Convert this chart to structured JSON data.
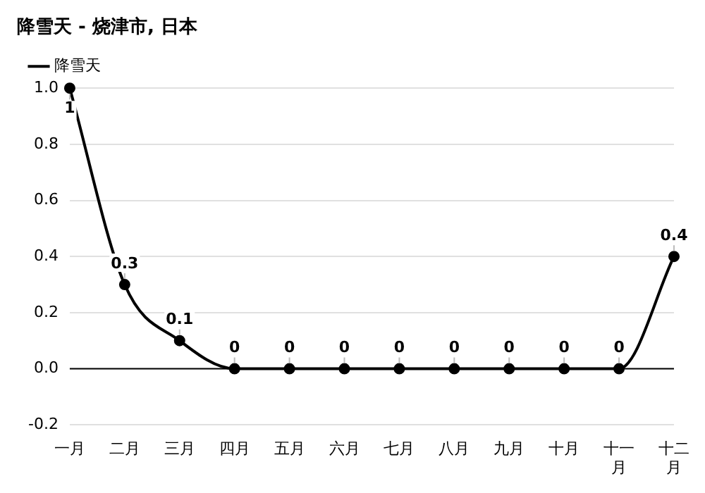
{
  "chart_data": {
    "type": "line",
    "title": "降雪天 - 烧津市, 日本",
    "categories": [
      "一月",
      "二月",
      "三月",
      "四月",
      "五月",
      "六月",
      "七月",
      "八月",
      "九月",
      "十月",
      "十一月",
      "十二月"
    ],
    "series": [
      {
        "name": "降雪天",
        "color": "#000000",
        "values": [
          1,
          0.3,
          0.1,
          0,
          0,
          0,
          0,
          0,
          0,
          0,
          0,
          0.4
        ]
      }
    ],
    "ylim": [
      -0.2,
      1.0
    ],
    "yticks": [
      -0.2,
      {
        "value": 0,
        "label": "0.0"
      },
      0.2,
      0.4,
      0.6,
      0.8,
      {
        "value": 1,
        "label": "1.0"
      }
    ],
    "grid": "y",
    "legend": "top left",
    "marker": "circle",
    "data_labels": true,
    "ref_lines": [
      {
        "axis": "y",
        "value": 0,
        "color": "#000000"
      }
    ]
  }
}
